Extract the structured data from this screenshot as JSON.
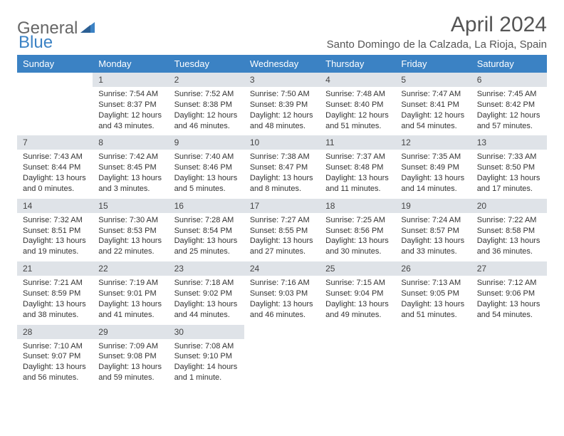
{
  "logo": {
    "general": "General",
    "blue": "Blue"
  },
  "title": "April 2024",
  "location": "Santo Domingo de la Calzada, La Rioja, Spain",
  "colors": {
    "header_bg": "#3b82c4",
    "header_text": "#ffffff",
    "daynum_bg": "#dfe3e8",
    "text": "#333333",
    "logo_gray": "#666666",
    "logo_blue": "#3b82c4",
    "page_bg": "#ffffff"
  },
  "weekdays": [
    "Sunday",
    "Monday",
    "Tuesday",
    "Wednesday",
    "Thursday",
    "Friday",
    "Saturday"
  ],
  "weeks": [
    [
      {
        "blank": true
      },
      {
        "num": "1",
        "sunrise": "7:54 AM",
        "sunset": "8:37 PM",
        "daylight": "12 hours and 43 minutes."
      },
      {
        "num": "2",
        "sunrise": "7:52 AM",
        "sunset": "8:38 PM",
        "daylight": "12 hours and 46 minutes."
      },
      {
        "num": "3",
        "sunrise": "7:50 AM",
        "sunset": "8:39 PM",
        "daylight": "12 hours and 48 minutes."
      },
      {
        "num": "4",
        "sunrise": "7:48 AM",
        "sunset": "8:40 PM",
        "daylight": "12 hours and 51 minutes."
      },
      {
        "num": "5",
        "sunrise": "7:47 AM",
        "sunset": "8:41 PM",
        "daylight": "12 hours and 54 minutes."
      },
      {
        "num": "6",
        "sunrise": "7:45 AM",
        "sunset": "8:42 PM",
        "daylight": "12 hours and 57 minutes."
      }
    ],
    [
      {
        "num": "7",
        "sunrise": "7:43 AM",
        "sunset": "8:44 PM",
        "daylight": "13 hours and 0 minutes."
      },
      {
        "num": "8",
        "sunrise": "7:42 AM",
        "sunset": "8:45 PM",
        "daylight": "13 hours and 3 minutes."
      },
      {
        "num": "9",
        "sunrise": "7:40 AM",
        "sunset": "8:46 PM",
        "daylight": "13 hours and 5 minutes."
      },
      {
        "num": "10",
        "sunrise": "7:38 AM",
        "sunset": "8:47 PM",
        "daylight": "13 hours and 8 minutes."
      },
      {
        "num": "11",
        "sunrise": "7:37 AM",
        "sunset": "8:48 PM",
        "daylight": "13 hours and 11 minutes."
      },
      {
        "num": "12",
        "sunrise": "7:35 AM",
        "sunset": "8:49 PM",
        "daylight": "13 hours and 14 minutes."
      },
      {
        "num": "13",
        "sunrise": "7:33 AM",
        "sunset": "8:50 PM",
        "daylight": "13 hours and 17 minutes."
      }
    ],
    [
      {
        "num": "14",
        "sunrise": "7:32 AM",
        "sunset": "8:51 PM",
        "daylight": "13 hours and 19 minutes."
      },
      {
        "num": "15",
        "sunrise": "7:30 AM",
        "sunset": "8:53 PM",
        "daylight": "13 hours and 22 minutes."
      },
      {
        "num": "16",
        "sunrise": "7:28 AM",
        "sunset": "8:54 PM",
        "daylight": "13 hours and 25 minutes."
      },
      {
        "num": "17",
        "sunrise": "7:27 AM",
        "sunset": "8:55 PM",
        "daylight": "13 hours and 27 minutes."
      },
      {
        "num": "18",
        "sunrise": "7:25 AM",
        "sunset": "8:56 PM",
        "daylight": "13 hours and 30 minutes."
      },
      {
        "num": "19",
        "sunrise": "7:24 AM",
        "sunset": "8:57 PM",
        "daylight": "13 hours and 33 minutes."
      },
      {
        "num": "20",
        "sunrise": "7:22 AM",
        "sunset": "8:58 PM",
        "daylight": "13 hours and 36 minutes."
      }
    ],
    [
      {
        "num": "21",
        "sunrise": "7:21 AM",
        "sunset": "8:59 PM",
        "daylight": "13 hours and 38 minutes."
      },
      {
        "num": "22",
        "sunrise": "7:19 AM",
        "sunset": "9:01 PM",
        "daylight": "13 hours and 41 minutes."
      },
      {
        "num": "23",
        "sunrise": "7:18 AM",
        "sunset": "9:02 PM",
        "daylight": "13 hours and 44 minutes."
      },
      {
        "num": "24",
        "sunrise": "7:16 AM",
        "sunset": "9:03 PM",
        "daylight": "13 hours and 46 minutes."
      },
      {
        "num": "25",
        "sunrise": "7:15 AM",
        "sunset": "9:04 PM",
        "daylight": "13 hours and 49 minutes."
      },
      {
        "num": "26",
        "sunrise": "7:13 AM",
        "sunset": "9:05 PM",
        "daylight": "13 hours and 51 minutes."
      },
      {
        "num": "27",
        "sunrise": "7:12 AM",
        "sunset": "9:06 PM",
        "daylight": "13 hours and 54 minutes."
      }
    ],
    [
      {
        "num": "28",
        "sunrise": "7:10 AM",
        "sunset": "9:07 PM",
        "daylight": "13 hours and 56 minutes."
      },
      {
        "num": "29",
        "sunrise": "7:09 AM",
        "sunset": "9:08 PM",
        "daylight": "13 hours and 59 minutes."
      },
      {
        "num": "30",
        "sunrise": "7:08 AM",
        "sunset": "9:10 PM",
        "daylight": "14 hours and 1 minute."
      },
      {
        "blank": true
      },
      {
        "blank": true
      },
      {
        "blank": true
      },
      {
        "blank": true
      }
    ]
  ],
  "labels": {
    "sunrise": "Sunrise: ",
    "sunset": "Sunset: ",
    "daylight": "Daylight: "
  }
}
